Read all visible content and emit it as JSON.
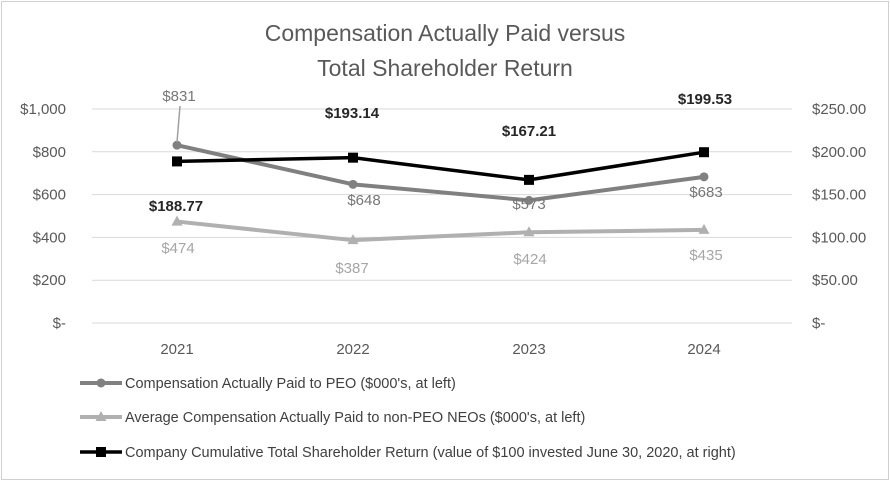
{
  "chart_data": {
    "type": "line",
    "title_lines": [
      "Compensation Actually Paid versus",
      "Total Shareholder Return"
    ],
    "categories": [
      "2021",
      "2022",
      "2023",
      "2024"
    ],
    "y_left": {
      "range": [
        0,
        1000
      ],
      "ticks": [
        0,
        200,
        400,
        600,
        800,
        1000
      ],
      "tick_labels": [
        "$-",
        "$200",
        "$400",
        "$600",
        "$800",
        "$1,000"
      ]
    },
    "y_right": {
      "range": [
        0,
        250
      ],
      "ticks": [
        0,
        50,
        100,
        150,
        200,
        250
      ],
      "tick_labels": [
        "$-",
        "$50.00",
        "$100.00",
        "$150.00",
        "$200.00",
        "$250.00"
      ]
    },
    "gridlines": true,
    "series": [
      {
        "key": "peo",
        "name": "Compensation Actually Paid to PEO ($000's, at left)",
        "axis": "left",
        "values": [
          831,
          648,
          573,
          683
        ],
        "data_labels": [
          "$831",
          "$648",
          "$573",
          "$683"
        ],
        "color": "#808080",
        "marker": "circle"
      },
      {
        "key": "neo",
        "name": "Average Compensation Actually Paid to non-PEO NEOs ($000's, at left)",
        "axis": "left",
        "values": [
          474,
          387,
          424,
          435
        ],
        "data_labels": [
          "$474",
          "$387",
          "$424",
          "$435"
        ],
        "color": "#b0b0b0",
        "marker": "triangle"
      },
      {
        "key": "tsr",
        "name": "Company Cumulative Total Shareholder Return (value of $100 invested June 30, 2020, at right)",
        "axis": "right",
        "values": [
          188.77,
          193.14,
          167.21,
          199.53
        ],
        "data_labels": [
          "$188.77",
          "$193.14",
          "$167.21",
          "$199.53"
        ],
        "color": "#000000",
        "marker": "square"
      }
    ]
  }
}
